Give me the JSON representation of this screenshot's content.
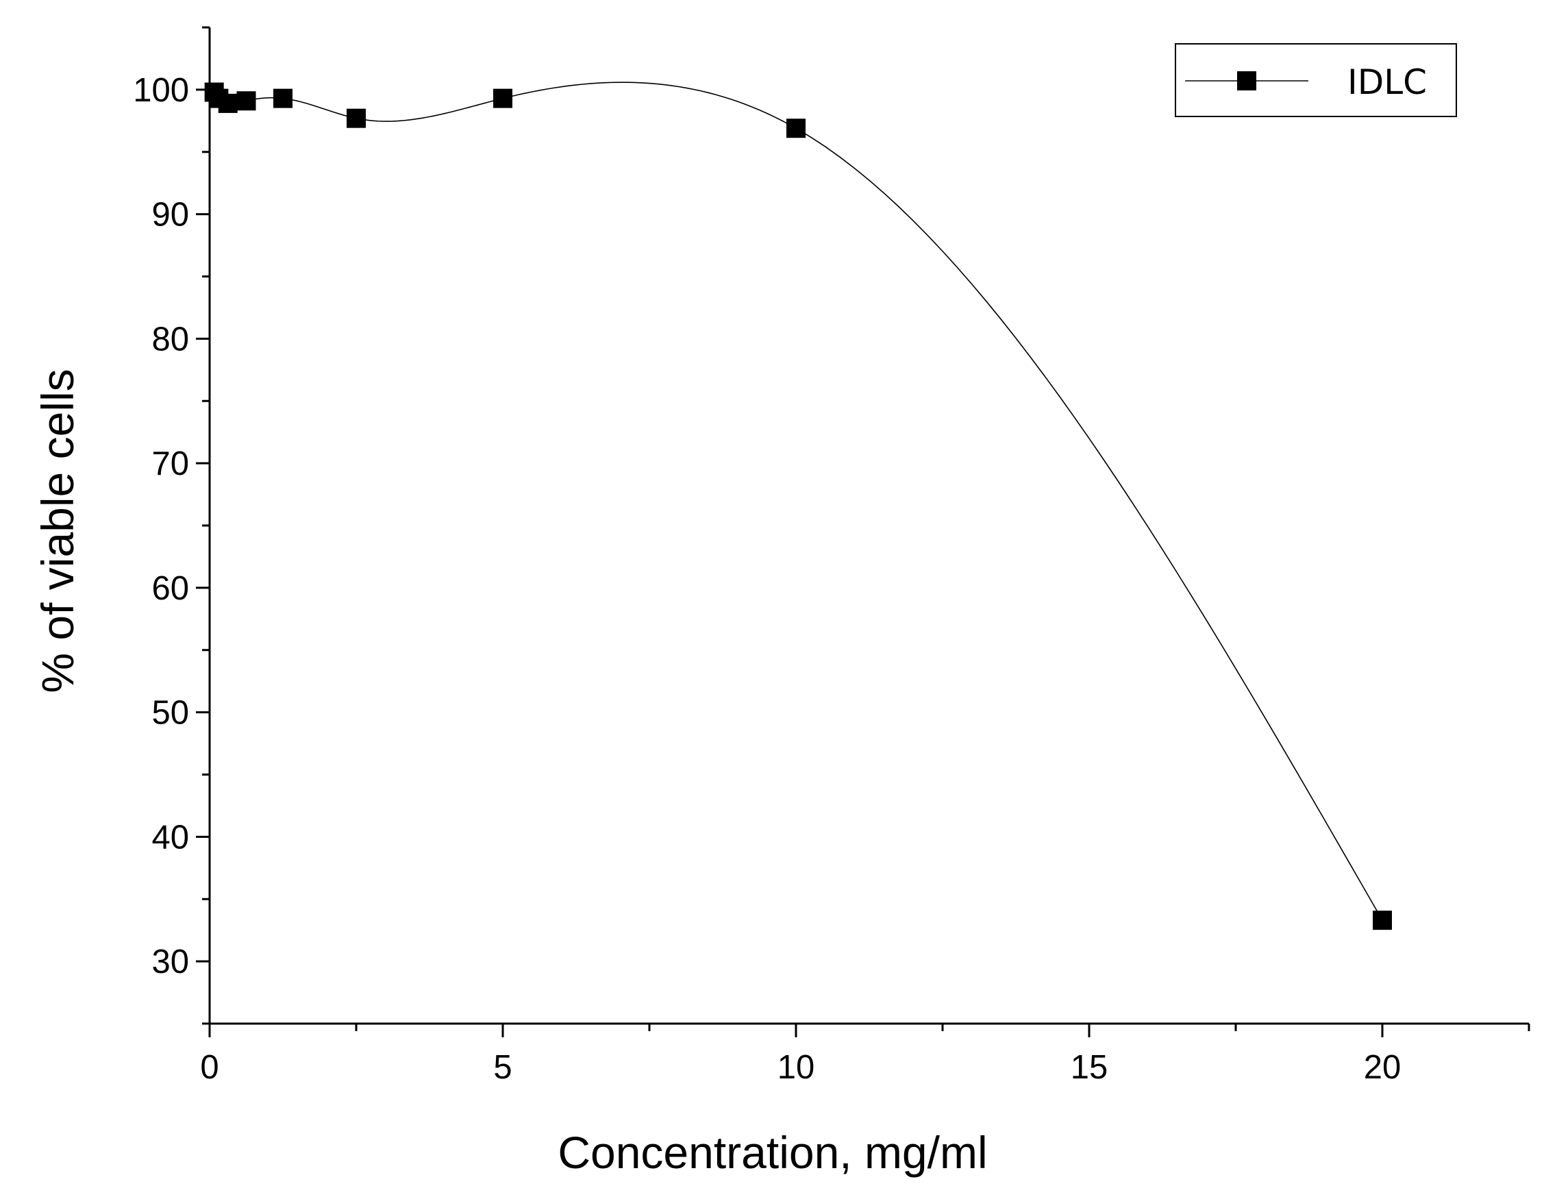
{
  "chart_data": {
    "type": "line",
    "title": "",
    "xlabel": "Concentration, mg/ml",
    "ylabel": "% of viable cells",
    "xlim": [
      0,
      22.5
    ],
    "ylim": [
      25,
      105
    ],
    "x_ticks": [
      0,
      5,
      10,
      15,
      20
    ],
    "y_ticks": [
      30,
      40,
      50,
      60,
      70,
      80,
      90,
      100
    ],
    "grid": false,
    "legend": "top-right",
    "smooth": true,
    "series": [
      {
        "name": "IDLC",
        "marker": "square",
        "color": "#000000",
        "x": [
          0.078,
          0.156,
          0.3125,
          0.625,
          1.25,
          2.5,
          5,
          10,
          20
        ],
        "y": [
          99.8,
          99.3,
          98.9,
          99.1,
          99.3,
          97.7,
          99.3,
          96.9,
          33.3
        ]
      }
    ]
  }
}
